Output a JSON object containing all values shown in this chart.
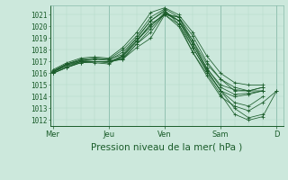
{
  "bg_color": "#cce8dc",
  "grid_major_color": "#88bbaa",
  "grid_minor_color": "#aad4c4",
  "line_color": "#1a5c2a",
  "xlabel": "Pression niveau de la mer( hPa )",
  "xlabel_fontsize": 7.5,
  "ytick_fontsize": 5.5,
  "xtick_fontsize": 6.0,
  "yticks": [
    1012,
    1013,
    1014,
    1015,
    1016,
    1017,
    1018,
    1019,
    1020,
    1021
  ],
  "ylim": [
    1011.5,
    1021.8
  ],
  "day_labels": [
    "Mer",
    "Jeu",
    "Ven",
    "Sam",
    "D"
  ],
  "day_positions": [
    0,
    24,
    48,
    72,
    96
  ],
  "xlim": [
    -1,
    99
  ],
  "series": [
    [
      0,
      1016.1,
      6,
      1016.8,
      12,
      1017.1,
      18,
      1017.0,
      24,
      1017.0,
      30,
      1017.2,
      36,
      1018.5,
      42,
      1019.5,
      48,
      1021.1,
      54,
      1020.8,
      60,
      1018.8,
      66,
      1016.4,
      72,
      1015.0,
      78,
      1014.6,
      84,
      1014.5,
      90,
      1014.5
    ],
    [
      0,
      1016.1,
      6,
      1016.7,
      12,
      1017.0,
      18,
      1017.0,
      24,
      1017.0,
      30,
      1017.5,
      36,
      1018.8,
      42,
      1020.0,
      48,
      1021.2,
      54,
      1020.5,
      60,
      1018.5,
      66,
      1016.5,
      72,
      1014.8,
      78,
      1014.2,
      84,
      1014.3,
      90,
      1014.5
    ],
    [
      0,
      1016.2,
      6,
      1016.8,
      12,
      1017.1,
      18,
      1017.2,
      24,
      1017.1,
      30,
      1017.8,
      36,
      1019.0,
      42,
      1020.5,
      48,
      1021.4,
      54,
      1020.2,
      60,
      1018.2,
      66,
      1016.2,
      72,
      1014.5,
      78,
      1013.5,
      84,
      1013.2,
      90,
      1014.0
    ],
    [
      0,
      1016.0,
      6,
      1016.5,
      12,
      1016.9,
      18,
      1017.0,
      24,
      1017.0,
      30,
      1017.3,
      36,
      1018.5,
      42,
      1019.8,
      48,
      1021.1,
      54,
      1020.5,
      60,
      1018.2,
      66,
      1016.2,
      72,
      1014.5,
      78,
      1013.0,
      84,
      1012.2,
      90,
      1012.5
    ],
    [
      0,
      1016.1,
      6,
      1016.6,
      12,
      1017.0,
      18,
      1017.0,
      24,
      1016.9,
      30,
      1017.4,
      36,
      1018.7,
      42,
      1020.2,
      48,
      1021.0,
      54,
      1020.2,
      60,
      1017.8,
      66,
      1016.0,
      72,
      1014.2,
      78,
      1012.5,
      84,
      1012.0,
      90,
      1012.3,
      96,
      1014.5
    ],
    [
      0,
      1016.2,
      6,
      1016.8,
      12,
      1017.2,
      18,
      1017.3,
      24,
      1017.2,
      30,
      1018.0,
      36,
      1019.2,
      42,
      1020.8,
      48,
      1021.5,
      54,
      1020.8,
      60,
      1019.2,
      66,
      1017.0,
      72,
      1015.5,
      78,
      1014.8,
      84,
      1014.5,
      90,
      1014.8
    ],
    [
      0,
      1016.3,
      6,
      1016.9,
      12,
      1017.3,
      18,
      1017.4,
      24,
      1017.3,
      30,
      1018.2,
      36,
      1019.5,
      42,
      1021.2,
      48,
      1021.6,
      54,
      1021.0,
      60,
      1019.5,
      66,
      1017.5,
      72,
      1016.0,
      78,
      1015.2,
      84,
      1015.0,
      90,
      1015.0
    ],
    [
      0,
      1016.0,
      6,
      1016.5,
      12,
      1017.0,
      18,
      1016.9,
      24,
      1016.8,
      30,
      1017.5,
      36,
      1018.8,
      42,
      1020.2,
      48,
      1021.0,
      54,
      1020.0,
      60,
      1017.8,
      66,
      1015.8,
      72,
      1014.0,
      78,
      1013.2,
      84,
      1012.8,
      90,
      1013.5,
      96,
      1014.5
    ],
    [
      0,
      1016.1,
      6,
      1016.7,
      12,
      1017.1,
      18,
      1017.2,
      24,
      1017.2,
      30,
      1017.6,
      36,
      1019.0,
      42,
      1020.5,
      48,
      1021.3,
      54,
      1020.5,
      60,
      1018.8,
      66,
      1016.8,
      72,
      1015.5,
      78,
      1014.5,
      84,
      1014.5,
      90,
      1014.8
    ],
    [
      0,
      1016.0,
      6,
      1016.5,
      12,
      1016.9,
      18,
      1017.0,
      24,
      1017.0,
      30,
      1017.2,
      36,
      1018.2,
      42,
      1019.0,
      48,
      1021.0,
      54,
      1020.8,
      60,
      1018.5,
      66,
      1016.3,
      72,
      1014.5,
      78,
      1014.0,
      84,
      1014.2,
      90,
      1014.5
    ]
  ]
}
